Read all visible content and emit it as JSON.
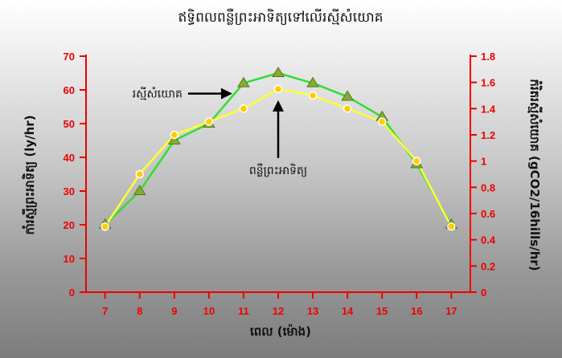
{
  "chart_data": {
    "type": "line",
    "title": "ឥទ្ធិពលពន្លឺព្រះអាទិត្យទៅលើរស្មីសំយោគ",
    "xlabel": "ពេល (ម៉ោង)",
    "ylabel_left": "កាំរស្មីព្រះអាទិត្យ (ly/hr)",
    "ylabel_right": "កំរិតរស្មីសំយោគ (gCO2/16hills/hr)",
    "x": [
      7,
      8,
      9,
      10,
      11,
      12,
      13,
      14,
      15,
      16,
      17
    ],
    "xlim": [
      6.45,
      17.55
    ],
    "ylim_left": [
      0,
      70
    ],
    "ylim_right": [
      0,
      1.8
    ],
    "left_ticks": [
      "0",
      "10",
      "20",
      "30",
      "40",
      "50",
      "60",
      "70"
    ],
    "right_ticks": [
      "0",
      "0.2",
      "0.4",
      "0.6",
      "0.8",
      "1",
      "1.2",
      "1.4",
      "1.6",
      "1.8"
    ],
    "grid": false,
    "series": [
      {
        "name": "រស្មីសំយោគ",
        "axis": "left",
        "color": "#33dd33",
        "marker": "triangle",
        "marker_color": "#88aa33",
        "values": [
          20,
          30,
          45,
          50,
          62,
          65,
          62,
          58,
          52,
          38,
          20
        ]
      },
      {
        "name": "ពន្លឺព្រះអាទិត្យ",
        "axis": "right",
        "color": "#ffff33",
        "marker": "circle",
        "marker_color": "#ffcc00",
        "values": [
          0.5,
          0.9,
          1.2,
          1.3,
          1.4,
          1.55,
          1.5,
          1.4,
          1.3,
          1.0,
          0.5
        ]
      }
    ],
    "annotations": [
      {
        "text": "រស្មីសំយោគ",
        "target_series": 0,
        "target_x": 11,
        "arrow": "right"
      },
      {
        "text": "ពន្លឺព្រះអាទិត្យ",
        "target_series": 1,
        "target_x": 12,
        "arrow": "up"
      }
    ],
    "axis_color": "#ee0000"
  }
}
